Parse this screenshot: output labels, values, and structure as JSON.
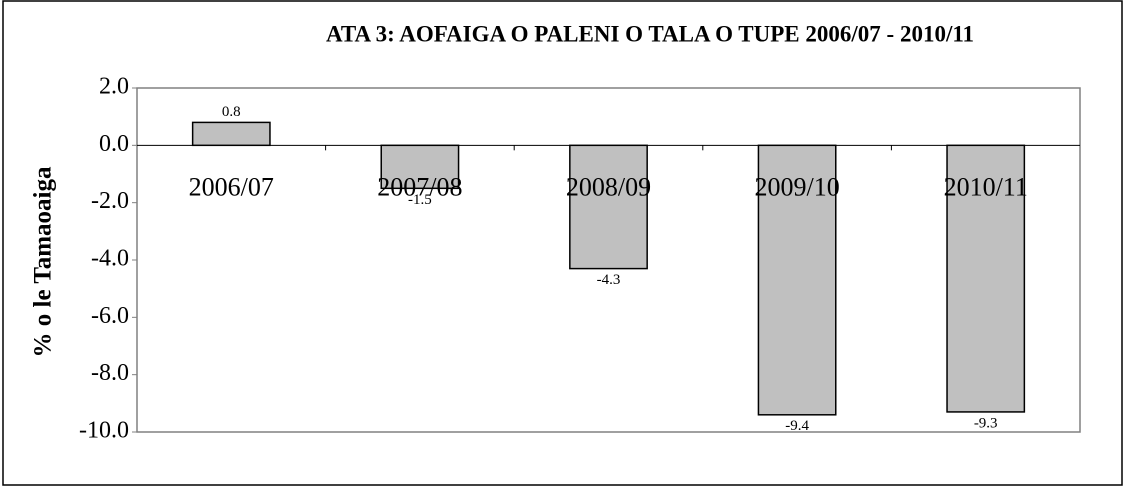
{
  "chart_data": {
    "type": "bar",
    "title": "ATA 3: AOFAIGA O PALENI O TALA O TUPE 2006/07 - 2010/11",
    "y_label": "% o le Tamaoaiga",
    "categories": [
      "2006/07",
      "2007/08",
      "2008/09",
      "2009/10",
      "2010/11"
    ],
    "values": [
      0.8,
      -1.5,
      -4.3,
      -9.4,
      -9.3
    ],
    "color": "#c0c0c0",
    "ylim": [
      -10,
      2
    ],
    "yticks": [
      {
        "value": 2,
        "label": "2.0"
      },
      {
        "value": 0,
        "label": "0.0"
      },
      {
        "value": -2,
        "label": "-2.0"
      },
      {
        "value": -4,
        "label": "-4.0"
      },
      {
        "value": -6,
        "label": "-6.0"
      },
      {
        "value": -8,
        "label": "-8.0"
      },
      {
        "value": -10,
        "label": "-10.0"
      }
    ],
    "grid": false
  }
}
